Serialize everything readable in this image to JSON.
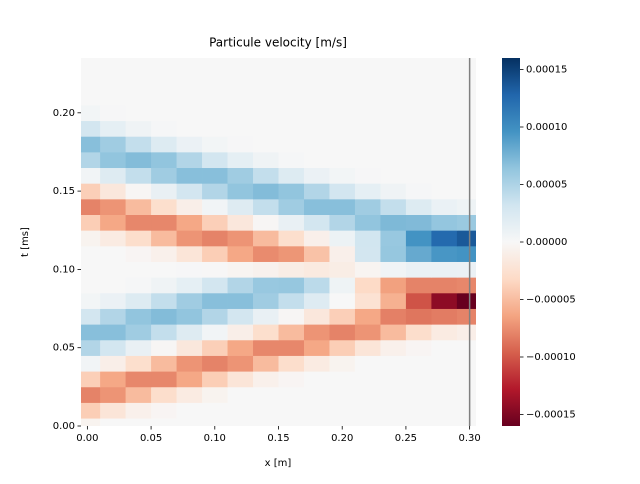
{
  "chart_data": {
    "type": "heatmap",
    "title": "Particule velocity [m/s]",
    "xlabel": "x [m]",
    "ylabel": "t [ms]",
    "colormap": "RdBu",
    "x": [
      0,
      0.02,
      0.04,
      0.06,
      0.08,
      0.1,
      0.12,
      0.14,
      0.16,
      0.18,
      0.2,
      0.22,
      0.24,
      0.26,
      0.28,
      0.3
    ],
    "y": [
      0,
      0.01,
      0.02,
      0.03,
      0.04,
      0.05,
      0.06,
      0.07,
      0.08,
      0.09,
      0.1,
      0.11,
      0.12,
      0.13,
      0.14,
      0.15,
      0.16,
      0.17,
      0.18,
      0.19,
      0.2,
      0.21,
      0.22,
      0.23
    ],
    "z": [
      [
        -5e-06,
        0,
        0,
        0,
        0,
        0,
        0,
        0,
        0,
        0,
        0,
        0,
        0,
        0,
        0,
        0
      ],
      [
        -4e-05,
        -2.1e-05,
        -8e-06,
        -3e-06,
        0,
        0,
        0,
        0,
        0,
        0,
        0,
        0,
        0,
        0,
        0,
        0
      ],
      [
        -8e-05,
        -7.2e-05,
        -5.1e-05,
        -2.9e-05,
        -1.4e-05,
        -5e-06,
        0,
        0,
        0,
        0,
        0,
        0,
        0,
        0,
        0,
        0
      ],
      [
        -3.9e-05,
        -6.2e-05,
        -7.8e-05,
        -7.8e-05,
        -6.2e-05,
        -4e-05,
        -2.1e-05,
        -8e-06,
        -3e-06,
        0,
        0,
        0,
        0,
        0,
        0,
        0
      ],
      [
        5e-06,
        -1e-05,
        -2.8e-05,
        -5.1e-05,
        -7.2e-05,
        -8e-05,
        -7.2e-05,
        -5.1e-05,
        -2.9e-05,
        -1.4e-05,
        -5e-06,
        0,
        0,
        0,
        0,
        0
      ],
      [
        4.8e-05,
        3e-05,
        1.2e-05,
        -2e-06,
        -1.8e-05,
        -3.9e-05,
        -6.2e-05,
        -7.8e-05,
        -7.8e-05,
        -6.2e-05,
        -4e-05,
        -2.1e-05,
        -8e-06,
        -3e-06,
        0,
        0
      ],
      [
        6.8e-05,
        6.8e-05,
        5.7e-05,
        3.9e-05,
        2.1e-05,
        5e-06,
        -1e-05,
        -2.8e-05,
        -5.1e-05,
        -7.2e-05,
        -8e-05,
        -7.2e-05,
        -5.1e-05,
        -2.9e-05,
        -1.4e-05,
        -1e-05
      ],
      [
        3e-05,
        4.8e-05,
        6.4e-05,
        7e-05,
        6.4e-05,
        4.8e-05,
        3e-05,
        1.2e-05,
        -2e-06,
        -1.8e-05,
        -3.9e-05,
        -6.2e-05,
        -8.1e-05,
        -8.6e-05,
        -8.3e-05,
        -8e-05
      ],
      [
        4e-06,
        1e-05,
        2.2e-05,
        3.9e-05,
        5.7e-05,
        6.8e-05,
        6.8e-05,
        5.7e-05,
        3.9e-05,
        2.1e-05,
        0,
        -2.4e-05,
        -5.7e-05,
        -0.000102,
        -0.000144,
        -0.00016
      ],
      [
        0,
        0,
        2e-06,
        7e-06,
        1.5e-05,
        3e-05,
        4.8e-05,
        6.1e-05,
        6.2e-05,
        4.3e-05,
        8e-06,
        -3.2e-05,
        -6.6e-05,
        -8e-05,
        -8e-05,
        -7.8e-05
      ],
      [
        0,
        0,
        0,
        0,
        1e-06,
        -1e-06,
        -4e-06,
        -7e-06,
        -1.2e-05,
        -1.5e-05,
        -1.2e-05,
        -4e-06,
        6e-06,
        1.1e-05,
        1.1e-05,
        1e-05
      ],
      [
        0,
        0,
        -3e-06,
        -8e-06,
        -2.1e-05,
        -4e-05,
        -6.2e-05,
        -7.6e-05,
        -7.1e-05,
        -4.7e-05,
        -9e-06,
        3e-05,
        6.2e-05,
        8.2e-05,
        9.4e-05,
        9.6e-05
      ],
      [
        -5e-06,
        -1.4e-05,
        -2.9e-05,
        -5.1e-05,
        -7.2e-05,
        -8e-05,
        -7.2e-05,
        -5.1e-05,
        -2.8e-05,
        -9e-06,
        9e-06,
        3.1e-05,
        6.1e-05,
        9.6e-05,
        0.000125,
        0.000136
      ],
      [
        -4e-05,
        -6.2e-05,
        -7.8e-05,
        -7.8e-05,
        -6.2e-05,
        -3.9e-05,
        -1.8e-05,
        -2e-06,
        1.2e-05,
        3e-05,
        4.8e-05,
        6.4e-05,
        7.2e-05,
        7.1e-05,
        6.3e-05,
        6e-05
      ],
      [
        -8e-05,
        -7.2e-05,
        -5.1e-05,
        -2.8e-05,
        -1e-05,
        5e-06,
        2.1e-05,
        3.9e-05,
        5.7e-05,
        6.8e-05,
        6.8e-05,
        5.7e-05,
        3.9e-05,
        2.2e-05,
        1.1e-05,
        8e-06
      ],
      [
        -3.9e-05,
        -1.8e-05,
        -2e-06,
        1.2e-05,
        3e-05,
        4.8e-05,
        6.4e-05,
        7e-05,
        6.4e-05,
        4.8e-05,
        3e-05,
        1.5e-05,
        7e-06,
        2e-06,
        0,
        0
      ],
      [
        5e-06,
        2.1e-05,
        3.9e-05,
        5.7e-05,
        6.8e-05,
        6.8e-05,
        5.7e-05,
        3.9e-05,
        2.2e-05,
        1e-05,
        4e-06,
        1e-06,
        0,
        0,
        0,
        0
      ],
      [
        4.8e-05,
        6.4e-05,
        7e-05,
        6.4e-05,
        4.8e-05,
        3e-05,
        1.5e-05,
        7e-06,
        2e-06,
        0,
        0,
        0,
        0,
        0,
        0,
        0
      ],
      [
        6.8e-05,
        5.7e-05,
        3.9e-05,
        2.2e-05,
        1e-05,
        4e-06,
        1e-06,
        0,
        0,
        0,
        0,
        0,
        0,
        0,
        0,
        0
      ],
      [
        3e-05,
        1.5e-05,
        7e-06,
        2e-06,
        0,
        0,
        0,
        0,
        0,
        0,
        0,
        0,
        0,
        0,
        0,
        0
      ],
      [
        4e-06,
        1e-06,
        0,
        0,
        0,
        0,
        0,
        0,
        0,
        0,
        0,
        0,
        0,
        0,
        0,
        0
      ],
      [
        0,
        0,
        0,
        0,
        0,
        0,
        0,
        0,
        0,
        0,
        0,
        0,
        0,
        0,
        0,
        0
      ],
      [
        0,
        0,
        0,
        0,
        0,
        0,
        0,
        0,
        0,
        0,
        0,
        0,
        0,
        0,
        0,
        0
      ],
      [
        0,
        0,
        0,
        0,
        0,
        0,
        0,
        0,
        0,
        0,
        0,
        0,
        0,
        0,
        0,
        0
      ]
    ],
    "xlim": [
      -0.005,
      0.305
    ],
    "ylim": [
      0,
      0.235
    ],
    "xticks": [
      {
        "value": 0,
        "label": "0.00"
      },
      {
        "value": 0.05,
        "label": "0.05"
      },
      {
        "value": 0.1,
        "label": "0.10"
      },
      {
        "value": 0.15,
        "label": "0.15"
      },
      {
        "value": 0.2,
        "label": "0.20"
      },
      {
        "value": 0.25,
        "label": "0.25"
      },
      {
        "value": 0.3,
        "label": "0.30"
      }
    ],
    "yticks": [
      {
        "value": 0,
        "label": "0.00"
      },
      {
        "value": 0.05,
        "label": "0.05"
      },
      {
        "value": 0.1,
        "label": "0.10"
      },
      {
        "value": 0.15,
        "label": "0.15"
      },
      {
        "value": 0.2,
        "label": "0.20"
      }
    ],
    "clim": [
      -0.00016,
      0.00016
    ],
    "cticks": [
      {
        "value": -0.00015,
        "label": "−0.00015"
      },
      {
        "value": -0.0001,
        "label": "−0.00010"
      },
      {
        "value": -5e-05,
        "label": "−0.00005"
      },
      {
        "value": 0,
        "label": "0.00000"
      },
      {
        "value": 5e-05,
        "label": "0.00005"
      },
      {
        "value": 0.0001,
        "label": "0.00010"
      },
      {
        "value": 0.00015,
        "label": "0.00015"
      }
    ],
    "vline": {
      "x": 0.3,
      "color": "#808080"
    }
  }
}
